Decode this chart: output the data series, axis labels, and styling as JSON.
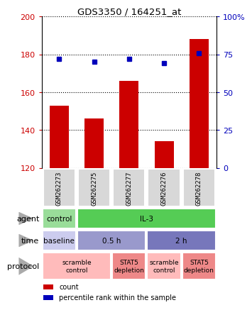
{
  "title": "GDS3350 / 164251_at",
  "samples": [
    "GSM262273",
    "GSM262275",
    "GSM262277",
    "GSM262276",
    "GSM262278"
  ],
  "bar_values": [
    153,
    146,
    166,
    134,
    188
  ],
  "bar_base": 120,
  "percentile_values": [
    72,
    70,
    72,
    69,
    76
  ],
  "percentile_scale_min": 0,
  "percentile_scale_max": 100,
  "y_min": 120,
  "y_max": 200,
  "y_ticks": [
    120,
    140,
    160,
    180,
    200
  ],
  "right_y_ticks": [
    0,
    25,
    50,
    75,
    100
  ],
  "bar_color": "#cc0000",
  "dot_color": "#0000bb",
  "bg_color": "#d8d8d8",
  "agent_row": {
    "label": "agent",
    "cells": [
      {
        "text": "control",
        "span": 1,
        "color": "#99dd99"
      },
      {
        "text": "IL-3",
        "span": 4,
        "color": "#55cc55"
      }
    ]
  },
  "time_row": {
    "label": "time",
    "cells": [
      {
        "text": "baseline",
        "span": 1,
        "color": "#ccccee"
      },
      {
        "text": "0.5 h",
        "span": 2,
        "color": "#9999cc"
      },
      {
        "text": "2 h",
        "span": 2,
        "color": "#7777bb"
      }
    ]
  },
  "protocol_row": {
    "label": "protocol",
    "cells": [
      {
        "text": "scramble\ncontrol",
        "span": 2,
        "color": "#ffbbbb"
      },
      {
        "text": "STAT5\ndepletion",
        "span": 1,
        "color": "#ee8888"
      },
      {
        "text": "scramble\ncontrol",
        "span": 1,
        "color": "#ffbbbb"
      },
      {
        "text": "STAT5\ndepletion",
        "span": 1,
        "color": "#ee8888"
      }
    ]
  },
  "legend_items": [
    {
      "color": "#cc0000",
      "label": "count"
    },
    {
      "color": "#0000bb",
      "label": "percentile rank within the sample"
    }
  ]
}
